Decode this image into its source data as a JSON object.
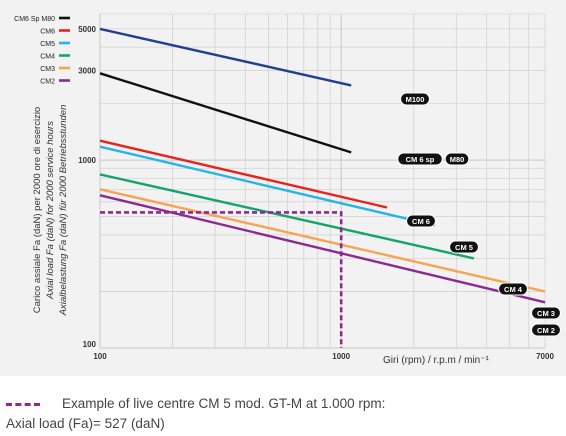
{
  "chart_data": {
    "type": "line",
    "x_scale": "log",
    "y_scale": "log",
    "xlim": [
      100,
      7000
    ],
    "ylim": [
      100,
      6000
    ],
    "x_tick_labels": [
      {
        "value": 100,
        "label": "100"
      },
      {
        "value": 1000,
        "label": "1000"
      },
      {
        "value": 7000,
        "label": "7000"
      }
    ],
    "y_tick_labels": [
      {
        "value": 100,
        "label": "100"
      },
      {
        "value": 1000,
        "label": "1000"
      },
      {
        "value": 3000,
        "label": "3000"
      },
      {
        "value": 5000,
        "label": "5000"
      }
    ],
    "xlabel": "Giri (rpm) / r.p.m / min⁻¹",
    "ylabel": [
      "Carico assiale Fa (daN) per 2000 ore di esercizio",
      "Axial load Fa (daN) for 2000 service hours",
      "Axialbelastung Fa (daN) für 2000 Betriebsstunden"
    ],
    "grid": true,
    "legend_position": "top-left",
    "legend": [
      {
        "label": "CM6 Sp M80",
        "color": "#111111"
      },
      {
        "label": "CM6",
        "color": "#e8231e"
      },
      {
        "label": "CM5",
        "color": "#28b4e6"
      },
      {
        "label": "CM4",
        "color": "#16a46e"
      },
      {
        "label": "CM3",
        "color": "#f5a553"
      },
      {
        "label": "CM2",
        "color": "#8b2a8f"
      }
    ],
    "series": [
      {
        "name": "M100",
        "color": "#243f8e",
        "x": [
          100,
          1100
        ],
        "y": [
          5000,
          2500
        ]
      },
      {
        "name": "CM 6 sp",
        "color": "#111111",
        "x": [
          100,
          1100
        ],
        "y": [
          2900,
          1100
        ]
      },
      {
        "name": "CM 6",
        "color": "#e8231e",
        "x": [
          100,
          1550
        ],
        "y": [
          1270,
          560
        ]
      },
      {
        "name": "CM 5",
        "color": "#28b4e6",
        "x": [
          100,
          2450
        ],
        "y": [
          1180,
          450
        ]
      },
      {
        "name": "CM 4",
        "color": "#16a46e",
        "x": [
          100,
          3550
        ],
        "y": [
          840,
          300
        ]
      },
      {
        "name": "CM 3",
        "color": "#f5a553",
        "x": [
          100,
          7000
        ],
        "y": [
          700,
          200
        ]
      },
      {
        "name": "CM 2",
        "color": "#8b2a8f",
        "x": [
          100,
          7000
        ],
        "y": [
          650,
          175
        ]
      }
    ],
    "end_labels": [
      {
        "text": "M100",
        "series": 0
      },
      {
        "text": "CM 6 sp",
        "series": 1
      },
      {
        "text": "M80",
        "series": 1
      },
      {
        "text": "CM 6",
        "series": 2
      },
      {
        "text": "CM 5",
        "series": 3
      },
      {
        "text": "CM 4",
        "series": 4
      },
      {
        "text": "CM 3",
        "series": 5
      },
      {
        "text": "CM 2",
        "series": 6
      }
    ],
    "example": {
      "color": "#8e2a8e",
      "x": 1000,
      "y": 527
    }
  },
  "caption": {
    "example_text": "Example of live centre CM 5 mod. GT-M at 1.000 rpm:",
    "axial_load_text": "Axial load (Fa)= 527 (daN)"
  }
}
